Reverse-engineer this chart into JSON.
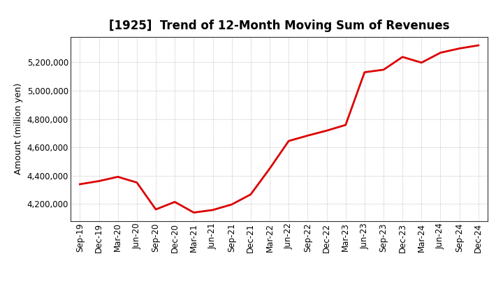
{
  "title": "[1925]  Trend of 12-Month Moving Sum of Revenues",
  "ylabel": "Amount (million yen)",
  "line_color": "#DD0000",
  "line_width": 2.0,
  "background_color": "#ffffff",
  "grid_color": "#999999",
  "x_labels": [
    "Sep-19",
    "Dec-19",
    "Mar-20",
    "Jun-20",
    "Sep-20",
    "Dec-20",
    "Mar-21",
    "Jun-21",
    "Sep-21",
    "Dec-21",
    "Mar-22",
    "Jun-22",
    "Sep-22",
    "Dec-22",
    "Mar-23",
    "Jun-23",
    "Sep-23",
    "Dec-23",
    "Mar-24",
    "Jun-24",
    "Sep-24",
    "Dec-24"
  ],
  "values": [
    4340000,
    4362000,
    4392000,
    4352000,
    4162000,
    4215000,
    4140000,
    4158000,
    4197000,
    4268000,
    4450000,
    4645000,
    4683000,
    4718000,
    4758000,
    5130000,
    5148000,
    5238000,
    5198000,
    5268000,
    5298000,
    5320000
  ],
  "ylim": [
    4080000,
    5380000
  ],
  "yticks": [
    4200000,
    4400000,
    4600000,
    4800000,
    5000000,
    5200000
  ],
  "figsize": [
    7.2,
    4.4
  ],
  "dpi": 100,
  "title_fontsize": 12,
  "ylabel_fontsize": 9,
  "tick_fontsize": 8.5
}
